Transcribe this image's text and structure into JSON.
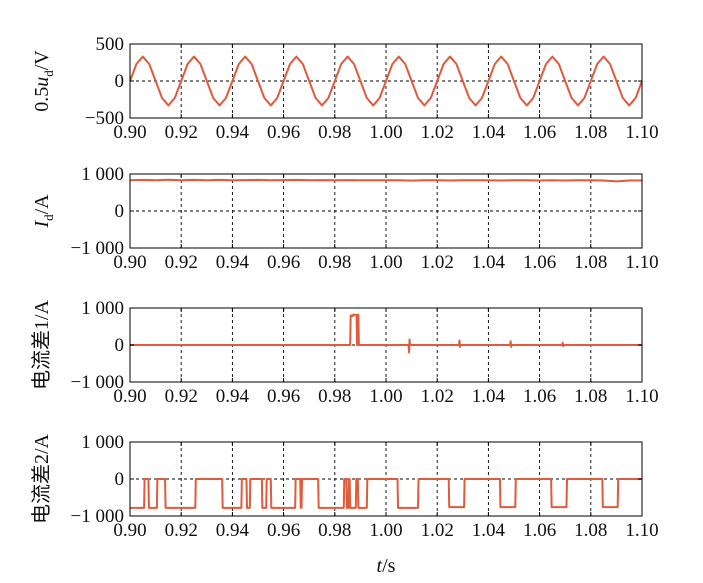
{
  "chart_data": [
    {
      "type": "line",
      "ylabel_main": "0.5",
      "ylabel_var": "u",
      "ylabel_sub": "d",
      "ylabel_unit": "/V",
      "yticks": [
        500,
        0,
        -500
      ],
      "ytick_labels": [
        "500",
        "0",
        "−500"
      ],
      "ylim": [
        -500,
        500
      ],
      "xlim": [
        0.9,
        1.1
      ],
      "xticks": [
        0.9,
        0.92,
        0.94,
        0.96,
        0.98,
        1.0,
        1.02,
        1.04,
        1.06,
        1.08,
        1.1
      ],
      "xtick_labels": [
        "0.90",
        "0.92",
        "0.94",
        "0.96",
        "0.98",
        "1.00",
        "1.02",
        "1.04",
        "1.06",
        "1.08",
        "1.10"
      ],
      "grid": true,
      "series": [
        {
          "color": "#e05a3c",
          "x": [
            0.9,
            0.9025,
            0.905,
            0.9075,
            0.91,
            0.9125,
            0.915,
            0.9175,
            0.92,
            0.9225,
            0.925,
            0.9275,
            0.93,
            0.9325,
            0.935,
            0.9375,
            0.94,
            0.9425,
            0.945,
            0.9475,
            0.95,
            0.9525,
            0.955,
            0.9575,
            0.96,
            0.9625,
            0.965,
            0.9675,
            0.97,
            0.9725,
            0.975,
            0.9775,
            0.98,
            0.9825,
            0.985,
            0.9875,
            0.99,
            0.9925,
            0.995,
            0.9975,
            1.0,
            1.0025,
            1.005,
            1.0075,
            1.01,
            1.0125,
            1.015,
            1.0175,
            1.02,
            1.0225,
            1.025,
            1.0275,
            1.03,
            1.0325,
            1.035,
            1.0375,
            1.04,
            1.0425,
            1.045,
            1.0475,
            1.05,
            1.0525,
            1.055,
            1.0575,
            1.06,
            1.0625,
            1.065,
            1.0675,
            1.07,
            1.0725,
            1.075,
            1.0775,
            1.08,
            1.0825,
            1.085,
            1.0875,
            1.09,
            1.0925,
            1.095,
            1.0975,
            1.1
          ],
          "y": [
            0,
            230,
            330,
            230,
            0,
            -230,
            -330,
            -230,
            0,
            230,
            330,
            230,
            0,
            -230,
            -330,
            -230,
            0,
            230,
            330,
            230,
            0,
            -230,
            -330,
            -230,
            0,
            230,
            330,
            230,
            0,
            -230,
            -330,
            -230,
            0,
            230,
            330,
            230,
            0,
            -230,
            -330,
            -230,
            0,
            230,
            330,
            230,
            0,
            -230,
            -330,
            -230,
            0,
            230,
            330,
            230,
            0,
            -230,
            -330,
            -230,
            0,
            230,
            330,
            230,
            0,
            -230,
            -330,
            -230,
            0,
            230,
            330,
            230,
            0,
            -230,
            -330,
            -230,
            0,
            230,
            330,
            230,
            0,
            -230,
            -330,
            -230,
            0
          ]
        }
      ]
    },
    {
      "type": "line",
      "ylabel_main": "",
      "ylabel_var": "I",
      "ylabel_sub": "d",
      "ylabel_unit": "/A",
      "yticks": [
        1000,
        0,
        -1000
      ],
      "ytick_labels": [
        "1 000",
        "0",
        "−1 000"
      ],
      "ylim": [
        -1000,
        1000
      ],
      "xlim": [
        0.9,
        1.1
      ],
      "xticks": [
        0.9,
        0.92,
        0.94,
        0.96,
        0.98,
        1.0,
        1.02,
        1.04,
        1.06,
        1.08,
        1.1
      ],
      "xtick_labels": [
        "0.90",
        "0.92",
        "0.94",
        "0.96",
        "0.98",
        "1.00",
        "1.02",
        "1.04",
        "1.06",
        "1.08",
        "1.10"
      ],
      "grid": true,
      "series": [
        {
          "color": "#e05a3c",
          "x": [
            0.9,
            0.905,
            0.91,
            0.915,
            0.92,
            0.925,
            0.93,
            0.935,
            0.94,
            0.945,
            0.95,
            0.955,
            0.96,
            0.965,
            0.97,
            0.975,
            0.98,
            0.985,
            0.99,
            0.995,
            1.0,
            1.005,
            1.01,
            1.015,
            1.02,
            1.025,
            1.03,
            1.035,
            1.04,
            1.045,
            1.05,
            1.055,
            1.06,
            1.065,
            1.07,
            1.075,
            1.08,
            1.085,
            1.09,
            1.095,
            1.1
          ],
          "y": [
            830,
            840,
            830,
            845,
            830,
            840,
            830,
            840,
            830,
            835,
            840,
            830,
            835,
            840,
            830,
            835,
            830,
            835,
            830,
            830,
            830,
            830,
            820,
            830,
            830,
            825,
            830,
            830,
            830,
            825,
            830,
            830,
            825,
            830,
            825,
            830,
            830,
            825,
            800,
            825,
            825
          ]
        }
      ]
    },
    {
      "type": "line",
      "ylabel_main": "电流差1/A",
      "ylabel_var": "",
      "ylabel_sub": "",
      "ylabel_unit": "",
      "yticks": [
        1000,
        0,
        -1000
      ],
      "ytick_labels": [
        "1 000",
        "0",
        "−1 000"
      ],
      "ylim": [
        -1000,
        1000
      ],
      "xlim": [
        0.9,
        1.1
      ],
      "xticks": [
        0.9,
        0.92,
        0.94,
        0.96,
        0.98,
        1.0,
        1.02,
        1.04,
        1.06,
        1.08,
        1.1
      ],
      "xtick_labels": [
        "0.90",
        "0.92",
        "0.94",
        "0.96",
        "0.98",
        "1.00",
        "1.02",
        "1.04",
        "1.06",
        "1.08",
        "1.10"
      ],
      "grid": true,
      "series": [
        {
          "color": "#e05a3c",
          "x": [
            0.9,
            0.986,
            0.9862,
            0.987,
            0.9872,
            0.9885,
            0.9887,
            0.9892,
            0.9894,
            1.0088,
            1.009,
            1.0092,
            1.0094,
            1.0285,
            1.0287,
            1.0289,
            1.0291,
            1.0485,
            1.0487,
            1.0489,
            1.0491,
            1.0688,
            1.069,
            1.0692,
            1.0694,
            1.1
          ],
          "y": [
            0,
            0,
            800,
            780,
            820,
            810,
            0,
            820,
            0,
            0,
            -200,
            150,
            0,
            0,
            120,
            -50,
            0,
            0,
            100,
            -50,
            0,
            0,
            60,
            -30,
            0,
            0
          ]
        }
      ]
    },
    {
      "type": "line",
      "ylabel_main": "电流差2/A",
      "ylabel_var": "",
      "ylabel_sub": "",
      "ylabel_unit": "",
      "yticks": [
        1000,
        0,
        -1000
      ],
      "ytick_labels": [
        "1 000",
        "0",
        "−1 000"
      ],
      "ylim": [
        -1000,
        1000
      ],
      "xlim": [
        0.9,
        1.1
      ],
      "xticks": [
        0.9,
        0.92,
        0.94,
        0.96,
        0.98,
        1.0,
        1.02,
        1.04,
        1.06,
        1.08,
        1.1
      ],
      "xtick_labels": [
        "0.90",
        "0.92",
        "0.94",
        "0.96",
        "0.98",
        "1.00",
        "1.02",
        "1.04",
        "1.06",
        "1.08",
        "1.10"
      ],
      "grid": true,
      "xlabel_var": "t",
      "xlabel_unit": "/s",
      "series": [
        {
          "color": "#e05a3c",
          "x": [
            0.9,
            0.9055,
            0.9057,
            0.9072,
            0.9074,
            0.9105,
            0.9107,
            0.9137,
            0.9139,
            0.9255,
            0.9257,
            0.936,
            0.9362,
            0.9435,
            0.9437,
            0.9455,
            0.9457,
            0.9468,
            0.947,
            0.9515,
            0.9517,
            0.9532,
            0.9534,
            0.955,
            0.9552,
            0.9645,
            0.9647,
            0.9665,
            0.9667,
            0.967,
            0.9672,
            0.9735,
            0.9737,
            0.9835,
            0.9837,
            0.9845,
            0.9847,
            0.9853,
            0.9855,
            0.9858,
            0.986,
            0.9882,
            0.9884,
            0.989,
            0.9892,
            0.9925,
            0.9927,
            1.0045,
            1.0047,
            1.0125,
            1.0127,
            1.0245,
            1.0247,
            1.0305,
            1.0307,
            1.0445,
            1.0447,
            1.0505,
            1.0507,
            1.0645,
            1.0647,
            1.0705,
            1.0707,
            1.0845,
            1.0847,
            1.0905,
            1.0907,
            1.1
          ],
          "y": [
            -780,
            -780,
            0,
            0,
            -780,
            -780,
            0,
            0,
            -780,
            -780,
            0,
            0,
            -780,
            -780,
            0,
            0,
            -780,
            -780,
            0,
            0,
            -780,
            -780,
            0,
            0,
            -780,
            -780,
            0,
            0,
            -780,
            -780,
            0,
            0,
            -780,
            -780,
            0,
            0,
            -780,
            -780,
            0,
            0,
            -780,
            -780,
            0,
            0,
            -780,
            -780,
            0,
            0,
            -780,
            -780,
            0,
            0,
            -760,
            -760,
            0,
            0,
            -760,
            -760,
            0,
            0,
            -760,
            -760,
            0,
            0,
            -760,
            -760,
            0,
            0
          ]
        }
      ]
    }
  ]
}
